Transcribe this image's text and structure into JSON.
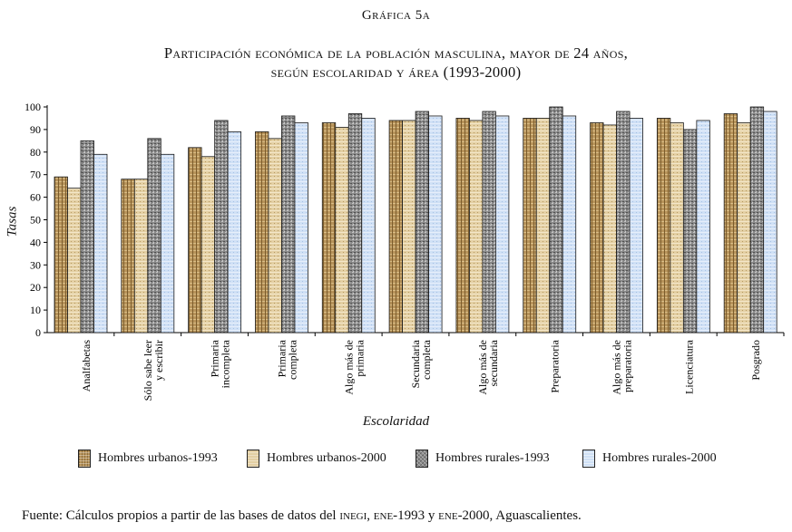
{
  "figure_label": "Gráfica 5a",
  "title_line1": "Participación económica de la población masculina, mayor de 24 años,",
  "title_line2": "según escolaridad y área (1993-2000)",
  "source_prefix": "Fuente: Cálculos propios a partir de las bases de datos del ",
  "source_inegi": "inegi",
  "source_sep1": ", ",
  "source_ene1993": "ene",
  "source_mid": "-1993 y ",
  "source_ene2000": "ene",
  "source_suffix": "-2000, Aguascalientes.",
  "colors": [
    "#b7935a",
    "#e3cfa3",
    "#8a8a8a",
    "#cfe0f5"
  ],
  "chart_data": {
    "type": "bar",
    "ylabel": "Tasas",
    "xlabel": "Escolaridad",
    "ylim": [
      0,
      100
    ],
    "yticks": [
      0,
      10,
      20,
      30,
      40,
      50,
      60,
      70,
      80,
      90,
      100
    ],
    "categories": [
      "Analfabetas",
      "Sólo sabe leer y escribir",
      "Primaria incompleta",
      "Primaria completa",
      "Algo más de primaria",
      "Secundaria completa",
      "Algo más de secundaria",
      "Preparatoria",
      "Algo más de preparatoria",
      "Licenciatura",
      "Posgrado"
    ],
    "category_lines": [
      [
        "Analfabetas"
      ],
      [
        "Sólo sabe leer",
        "y escribir"
      ],
      [
        "Primaria",
        "incompleta"
      ],
      [
        "Primaria",
        "completa"
      ],
      [
        "Algo más de",
        "primaria"
      ],
      [
        "Secundaria",
        "completa"
      ],
      [
        "Algo más de",
        "secundaria"
      ],
      [
        "Preparatoria"
      ],
      [
        "Algo más de",
        "preparatoria"
      ],
      [
        "Licenciatura"
      ],
      [
        "Posgrado"
      ]
    ],
    "series": [
      {
        "name": "Hombres urbanos-1993",
        "values": [
          69,
          68,
          82,
          89,
          93,
          94,
          95,
          95,
          93,
          95,
          97
        ]
      },
      {
        "name": "Hombres urbanos-2000",
        "values": [
          64,
          68,
          78,
          86,
          91,
          94,
          94,
          95,
          92,
          93,
          93
        ]
      },
      {
        "name": "Hombres rurales-1993",
        "values": [
          85,
          86,
          94,
          96,
          97,
          98,
          98,
          100,
          98,
          90,
          100
        ]
      },
      {
        "name": "Hombres rurales-2000",
        "values": [
          79,
          79,
          89,
          93,
          95,
          96,
          96,
          96,
          95,
          94,
          98
        ]
      }
    ],
    "legend_position": "bottom",
    "grid": false
  }
}
